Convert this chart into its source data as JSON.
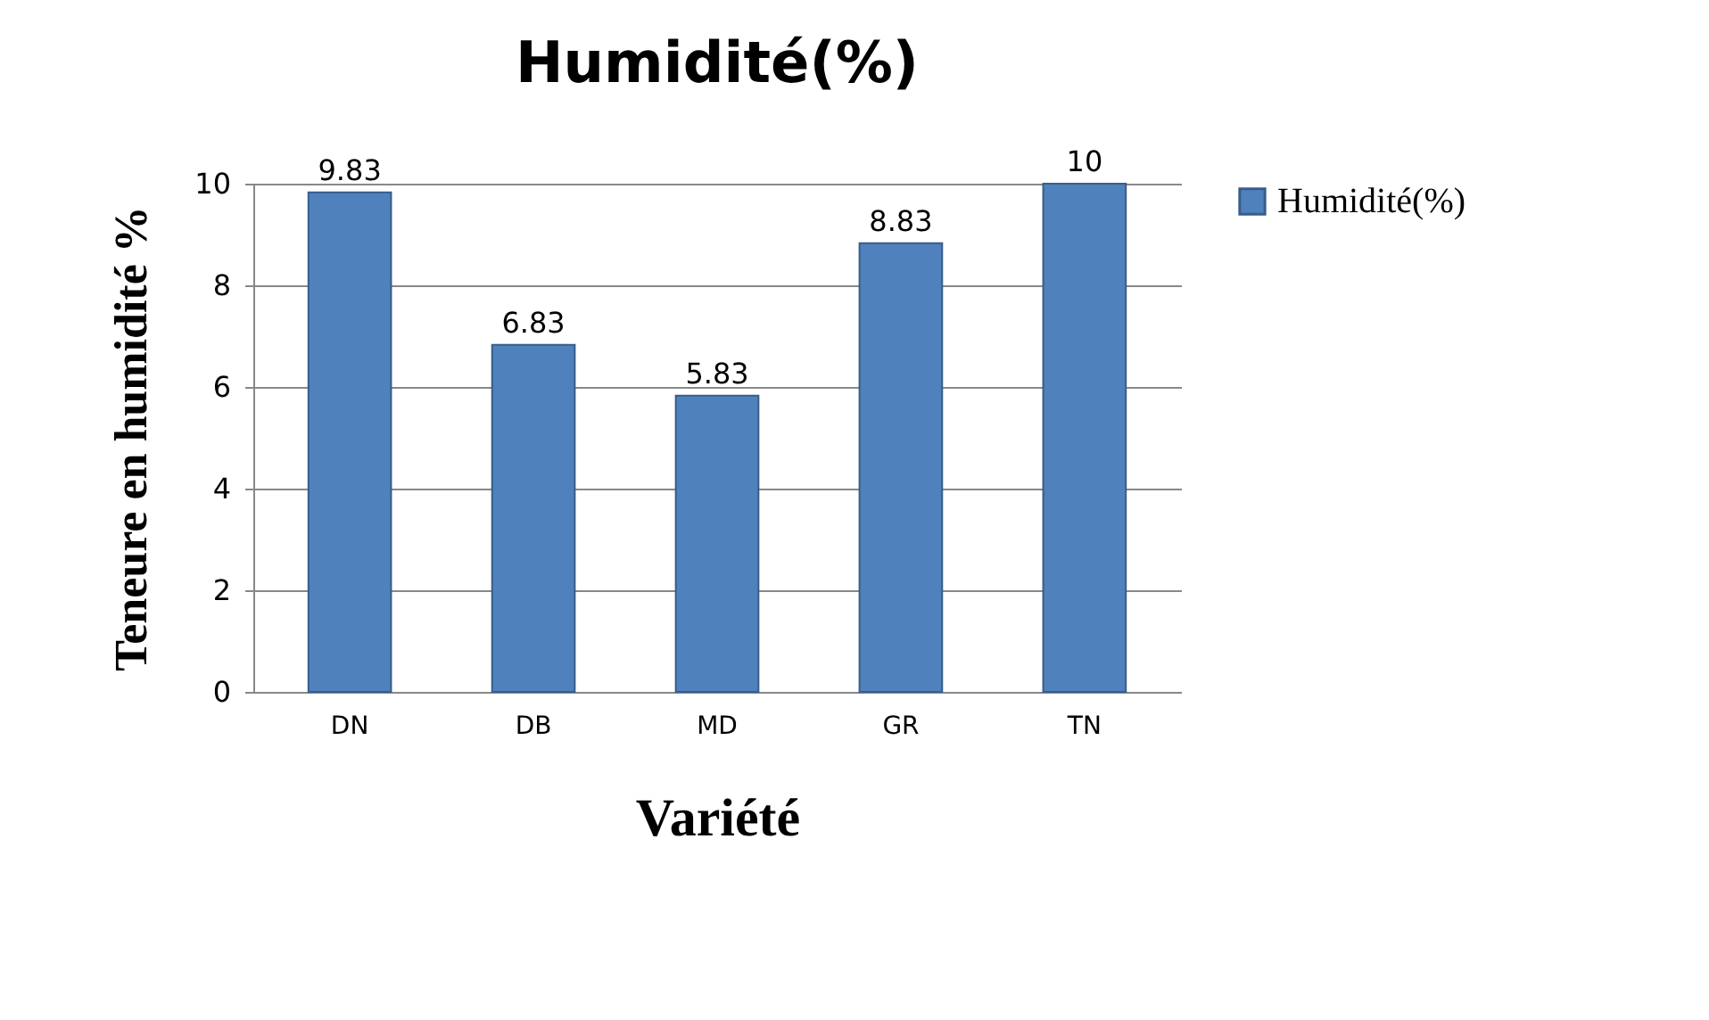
{
  "chart_data": {
    "type": "bar",
    "title": "Humidité(%)",
    "xlabel": "Variété",
    "ylabel": "Teneure en humidité %",
    "categories": [
      "DN",
      "DB",
      "MD",
      "GR",
      "TN"
    ],
    "series": [
      {
        "name": "Humidité(%)",
        "color": "#4f81bd",
        "values": [
          9.83,
          6.83,
          5.83,
          8.83,
          10
        ]
      }
    ],
    "ylim": [
      0,
      10
    ],
    "yticks": [
      0,
      2,
      4,
      6,
      8,
      10
    ],
    "grid": "y",
    "legend": "right",
    "data_labels": true
  }
}
